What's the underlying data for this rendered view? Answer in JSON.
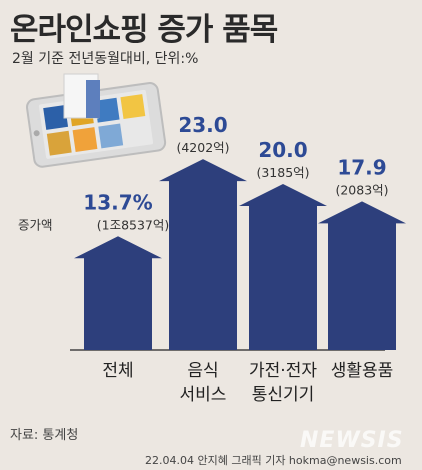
{
  "header": {
    "title": "온라인쇼핑 증가 품목",
    "subtitle": "2월 기준 전년동월대비, 단위:%"
  },
  "chart_data": {
    "type": "bar",
    "categories": [
      "전체",
      "음식 서비스",
      "가전·전자 통신기기",
      "생활용품"
    ],
    "category_lines": [
      [
        "전체"
      ],
      [
        "음식",
        "서비스"
      ],
      [
        "가전·전자",
        "통신기기"
      ],
      [
        "생활용품"
      ]
    ],
    "values": [
      13.7,
      23.0,
      20.0,
      17.9
    ],
    "value_labels": [
      "13.7%",
      "23.0",
      "20.0",
      "17.9"
    ],
    "amount_labels": [
      "(1조8537억)",
      "(4202억)",
      "(3185억)",
      "(2083억)"
    ],
    "amount_prefix": "증가액",
    "title": "온라인쇼핑 증가 품목",
    "xlabel": "",
    "ylabel": "",
    "ylim": [
      0,
      25
    ],
    "grid": false,
    "legend": "none",
    "colors": {
      "bar": "#2d3f7c",
      "value_text": "#2d4a95",
      "axis": "#444444"
    }
  },
  "footer": {
    "source": "자료: 통계청",
    "credit": "22.04.04 안지혜 그래픽 기자 hokma@newsis.com",
    "watermark": "NEWSIS"
  },
  "illustration": {
    "icon": "smartphone-shopping-icon"
  }
}
